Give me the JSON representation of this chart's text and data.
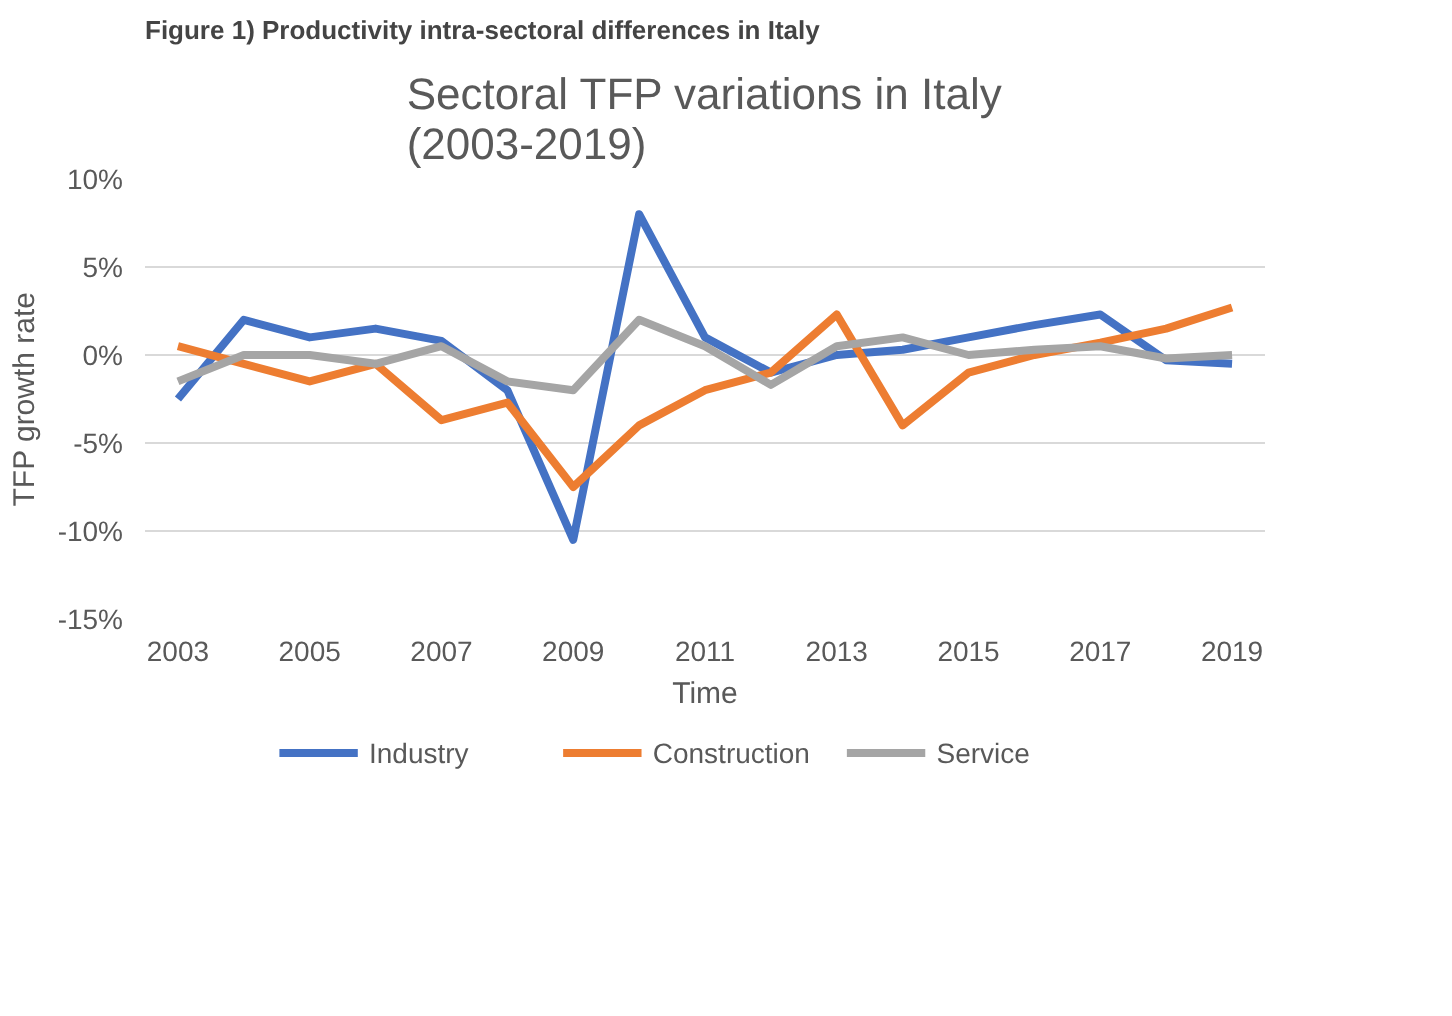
{
  "chart_data": {
    "type": "line",
    "title": "Sectoral TFP variations in Italy\n(2003-2019)",
    "xlabel": "Time",
    "ylabel": "TFP growth rate",
    "annotations": [
      "Figure 1) Productivity intra-sectoral differences in Italy"
    ],
    "x": [
      2003,
      2004,
      2005,
      2006,
      2007,
      2008,
      2009,
      2010,
      2011,
      2012,
      2013,
      2014,
      2015,
      2016,
      2017,
      2018,
      2019
    ],
    "series": [
      {
        "name": "Industry",
        "color": "#4472c4",
        "values": [
          -2.5,
          2,
          1,
          1.5,
          0.8,
          -2,
          -10.5,
          8,
          1,
          -1,
          0,
          0.3,
          1,
          1.7,
          2.3,
          -0.3,
          -0.5
        ]
      },
      {
        "name": "Construction",
        "color": "#ed7d31",
        "values": [
          0.5,
          -0.5,
          -1.5,
          -0.5,
          -3.7,
          -2.7,
          -7.5,
          -4,
          -2,
          -1,
          2.3,
          -4,
          -1,
          0,
          0.7,
          1.5,
          2.7
        ]
      },
      {
        "name": "Service",
        "color": "#a5a5a5",
        "values": [
          -1.5,
          0,
          0,
          -0.5,
          0.5,
          -1.5,
          -2,
          2,
          0.5,
          -1.7,
          0.5,
          1,
          0,
          0.3,
          0.5,
          -0.2,
          0
        ]
      }
    ],
    "xlim": [
      2002.5,
      2019.5
    ],
    "xticks": [
      2003,
      2005,
      2007,
      2009,
      2011,
      2013,
      2015,
      2017,
      2019
    ],
    "ylim": [
      -15,
      10
    ],
    "yticks": [
      {
        "value": -15,
        "label": "-15%"
      },
      {
        "value": -10,
        "label": "-10%"
      },
      {
        "value": -5,
        "label": "-5%"
      },
      {
        "value": 0,
        "label": "0%"
      },
      {
        "value": 5,
        "label": "5%"
      },
      {
        "value": 10,
        "label": "10%"
      }
    ],
    "grid": "y",
    "legend": "bottom",
    "marker": "none",
    "line_style": "solid"
  }
}
